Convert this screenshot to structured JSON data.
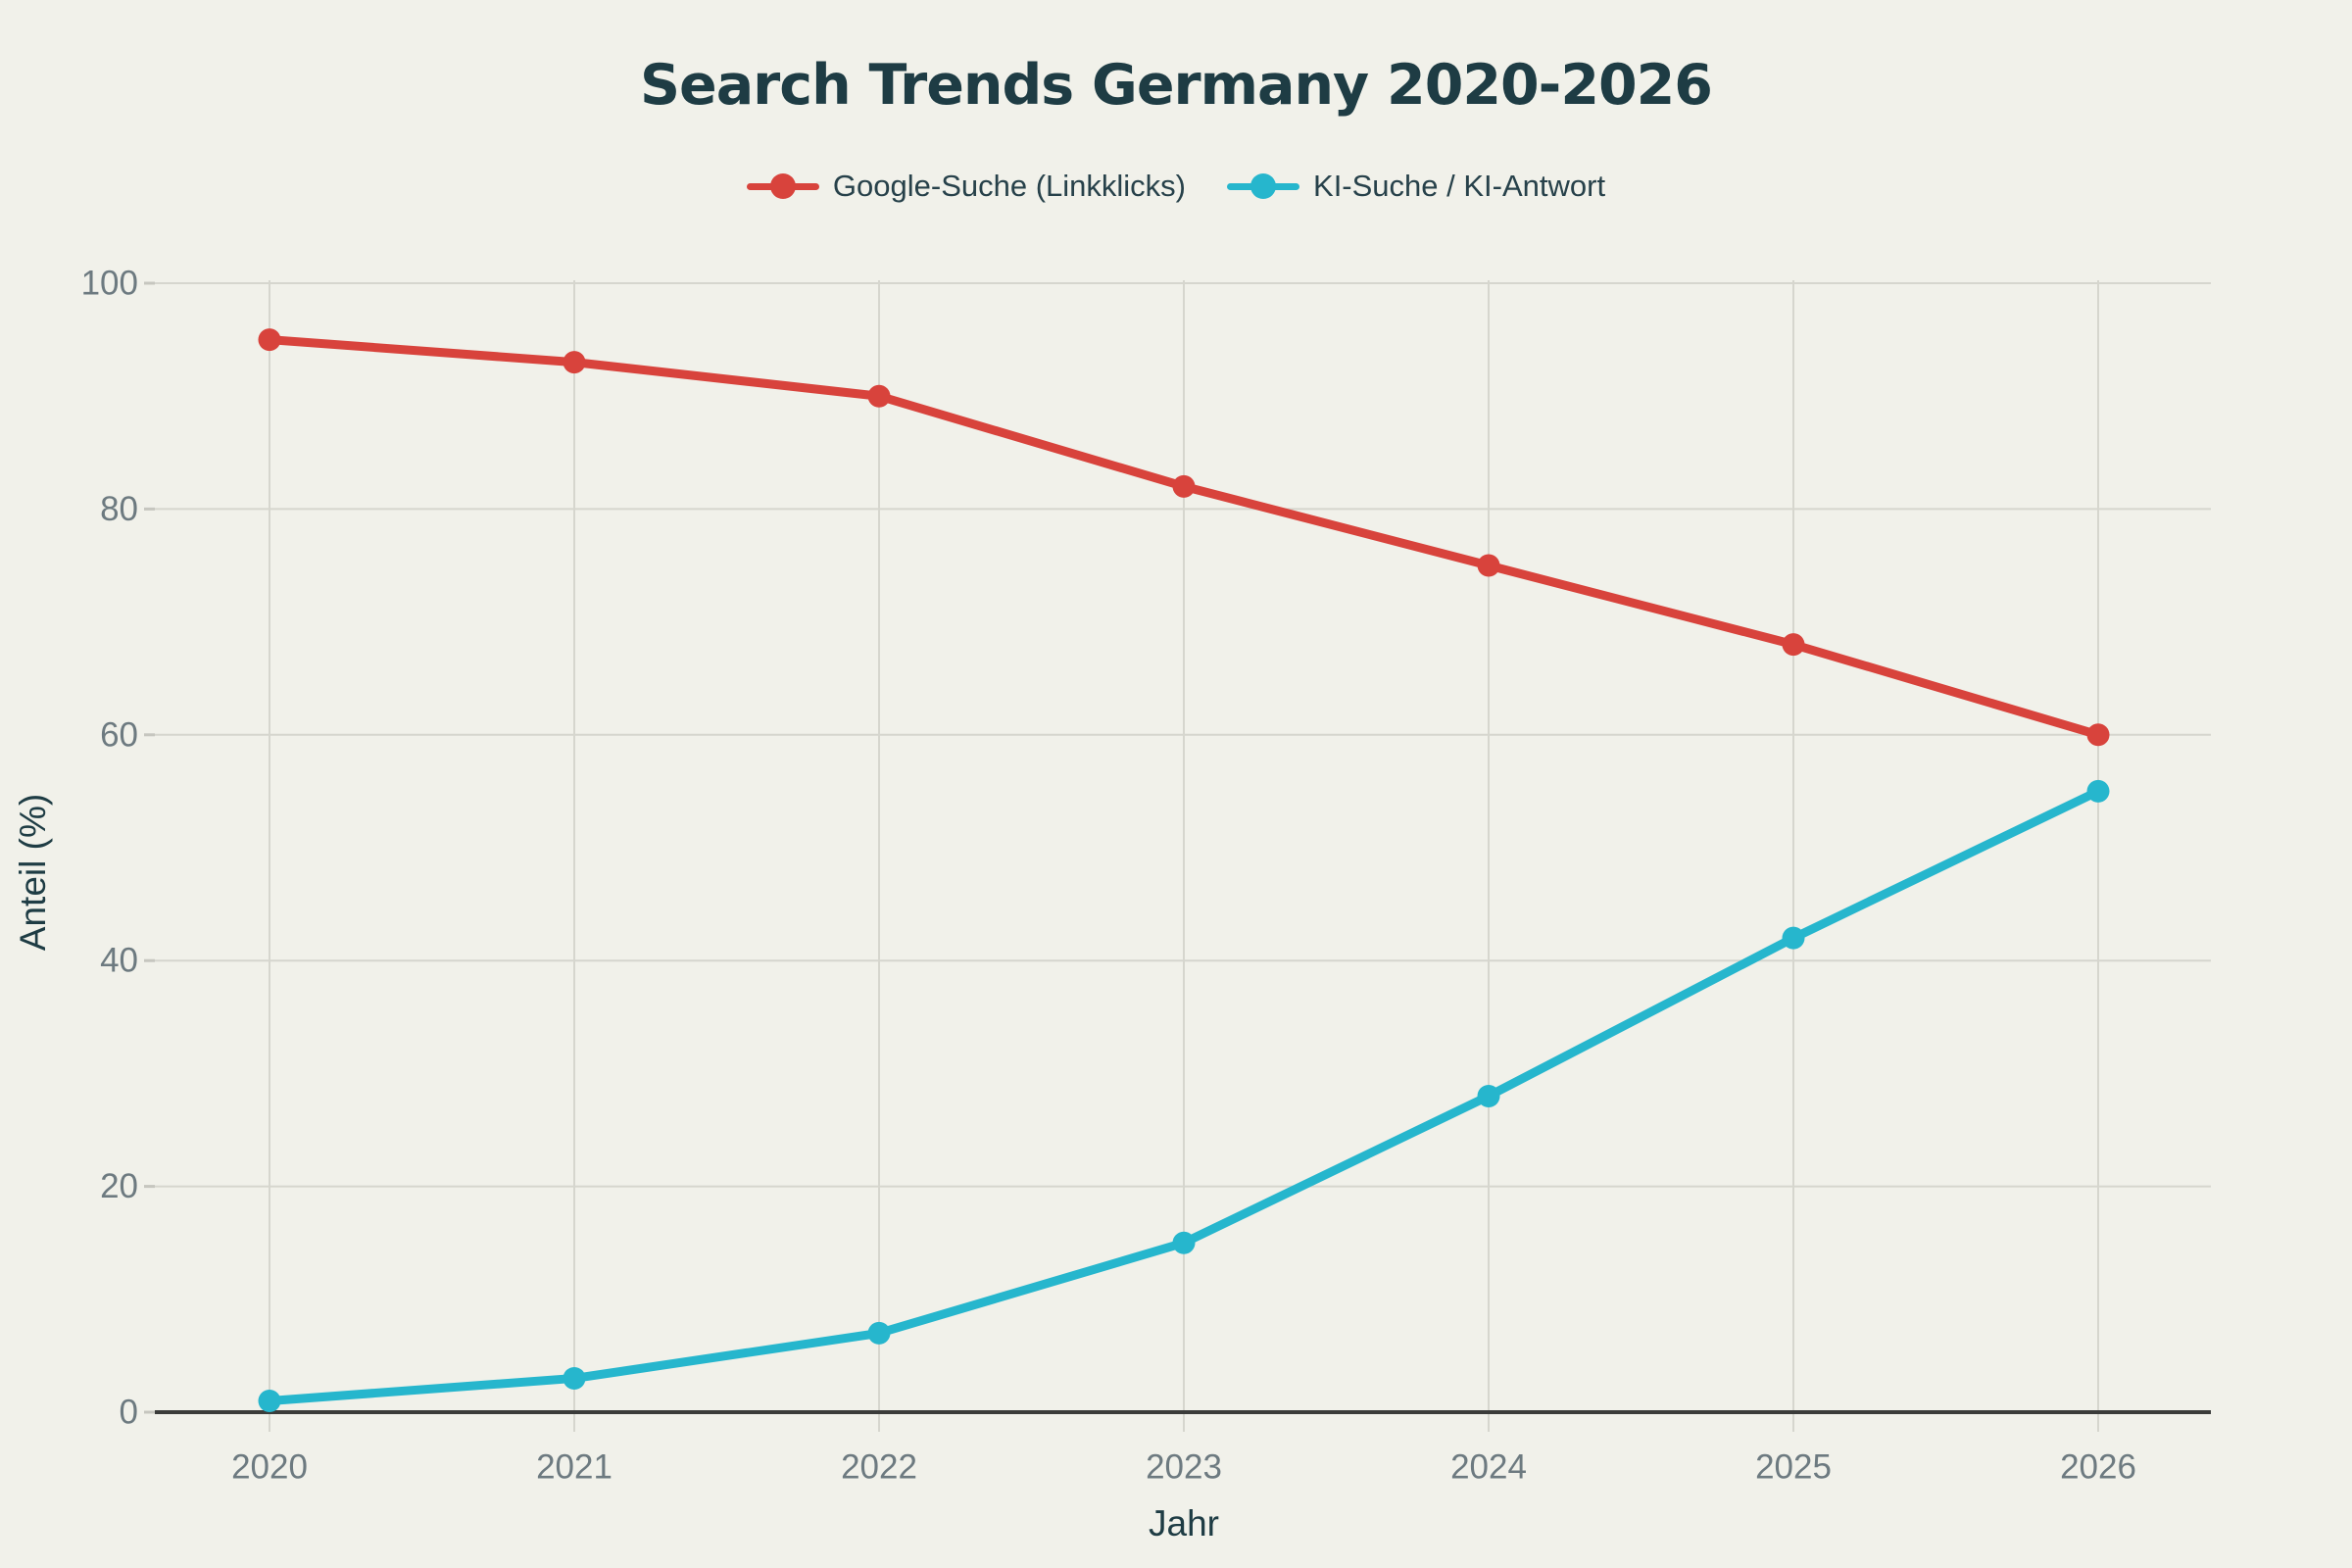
{
  "chart_data": {
    "type": "line",
    "title": "Search Trends Germany 2020-2026",
    "xlabel": "Jahr",
    "ylabel": "Anteil (%)",
    "categories": [
      "2020",
      "2021",
      "2022",
      "2023",
      "2024",
      "2025",
      "2026"
    ],
    "series": [
      {
        "name": "Google-Suche (Linkklicks)",
        "color": "#d8433c",
        "values": [
          95,
          93,
          90,
          82,
          75,
          68,
          60
        ]
      },
      {
        "name": "KI-Suche / KI-Antwort",
        "color": "#26b6cd",
        "values": [
          1,
          3,
          7,
          15,
          28,
          42,
          55
        ]
      }
    ],
    "ylim": [
      0,
      100
    ],
    "ytick_step": 20,
    "yticks": [
      0,
      20,
      40,
      60,
      80,
      100
    ],
    "grid": true,
    "legend_position": "top",
    "marker": "circle"
  },
  "colors": {
    "background": "#f1f1ea",
    "title_text": "#1e3c44",
    "axis_title_text": "#1e3c44",
    "legend_text": "#27414a",
    "tick_label_text": "#6d7a80",
    "gridline": "#d6d6ce",
    "tick_dash": "#c6c6bf",
    "axis_line": "#3b3c3a"
  }
}
